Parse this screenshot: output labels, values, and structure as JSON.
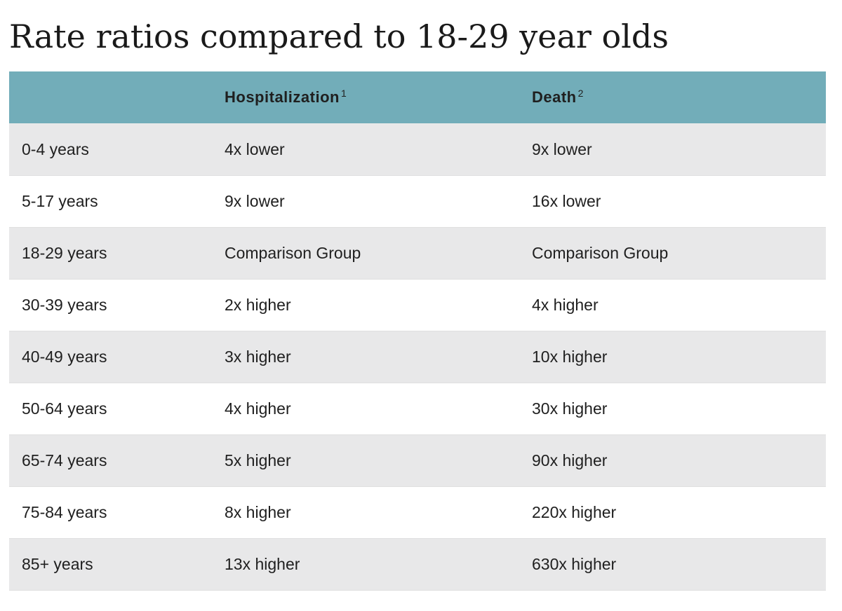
{
  "title": "Rate ratios compared to 18-29 year olds",
  "header": {
    "col1": "",
    "col2": "Hospitalization",
    "col2_sup": "1",
    "col3": "Death",
    "col3_sup": "2"
  },
  "rows": [
    {
      "age": "0-4 years",
      "hospitalization": "4x lower",
      "death": "9x lower"
    },
    {
      "age": "5-17 years",
      "hospitalization": "9x lower",
      "death": "16x lower"
    },
    {
      "age": "18-29 years",
      "hospitalization": "Comparison Group",
      "death": "Comparison Group"
    },
    {
      "age": "30-39 years",
      "hospitalization": "2x higher",
      "death": "4x higher"
    },
    {
      "age": "40-49 years",
      "hospitalization": "3x higher",
      "death": "10x higher"
    },
    {
      "age": "50-64 years",
      "hospitalization": "4x higher",
      "death": "30x higher"
    },
    {
      "age": "65-74 years",
      "hospitalization": "5x higher",
      "death": "90x higher"
    },
    {
      "age": "75-84 years",
      "hospitalization": "8x higher",
      "death": "220x higher"
    },
    {
      "age": "85+ years",
      "hospitalization": "13x higher",
      "death": "630x higher"
    }
  ],
  "colors": {
    "header_bg": "#72adb9",
    "row_odd_bg": "#e8e8e9",
    "row_even_bg": "#ffffff",
    "text": "#1f1f1f"
  }
}
